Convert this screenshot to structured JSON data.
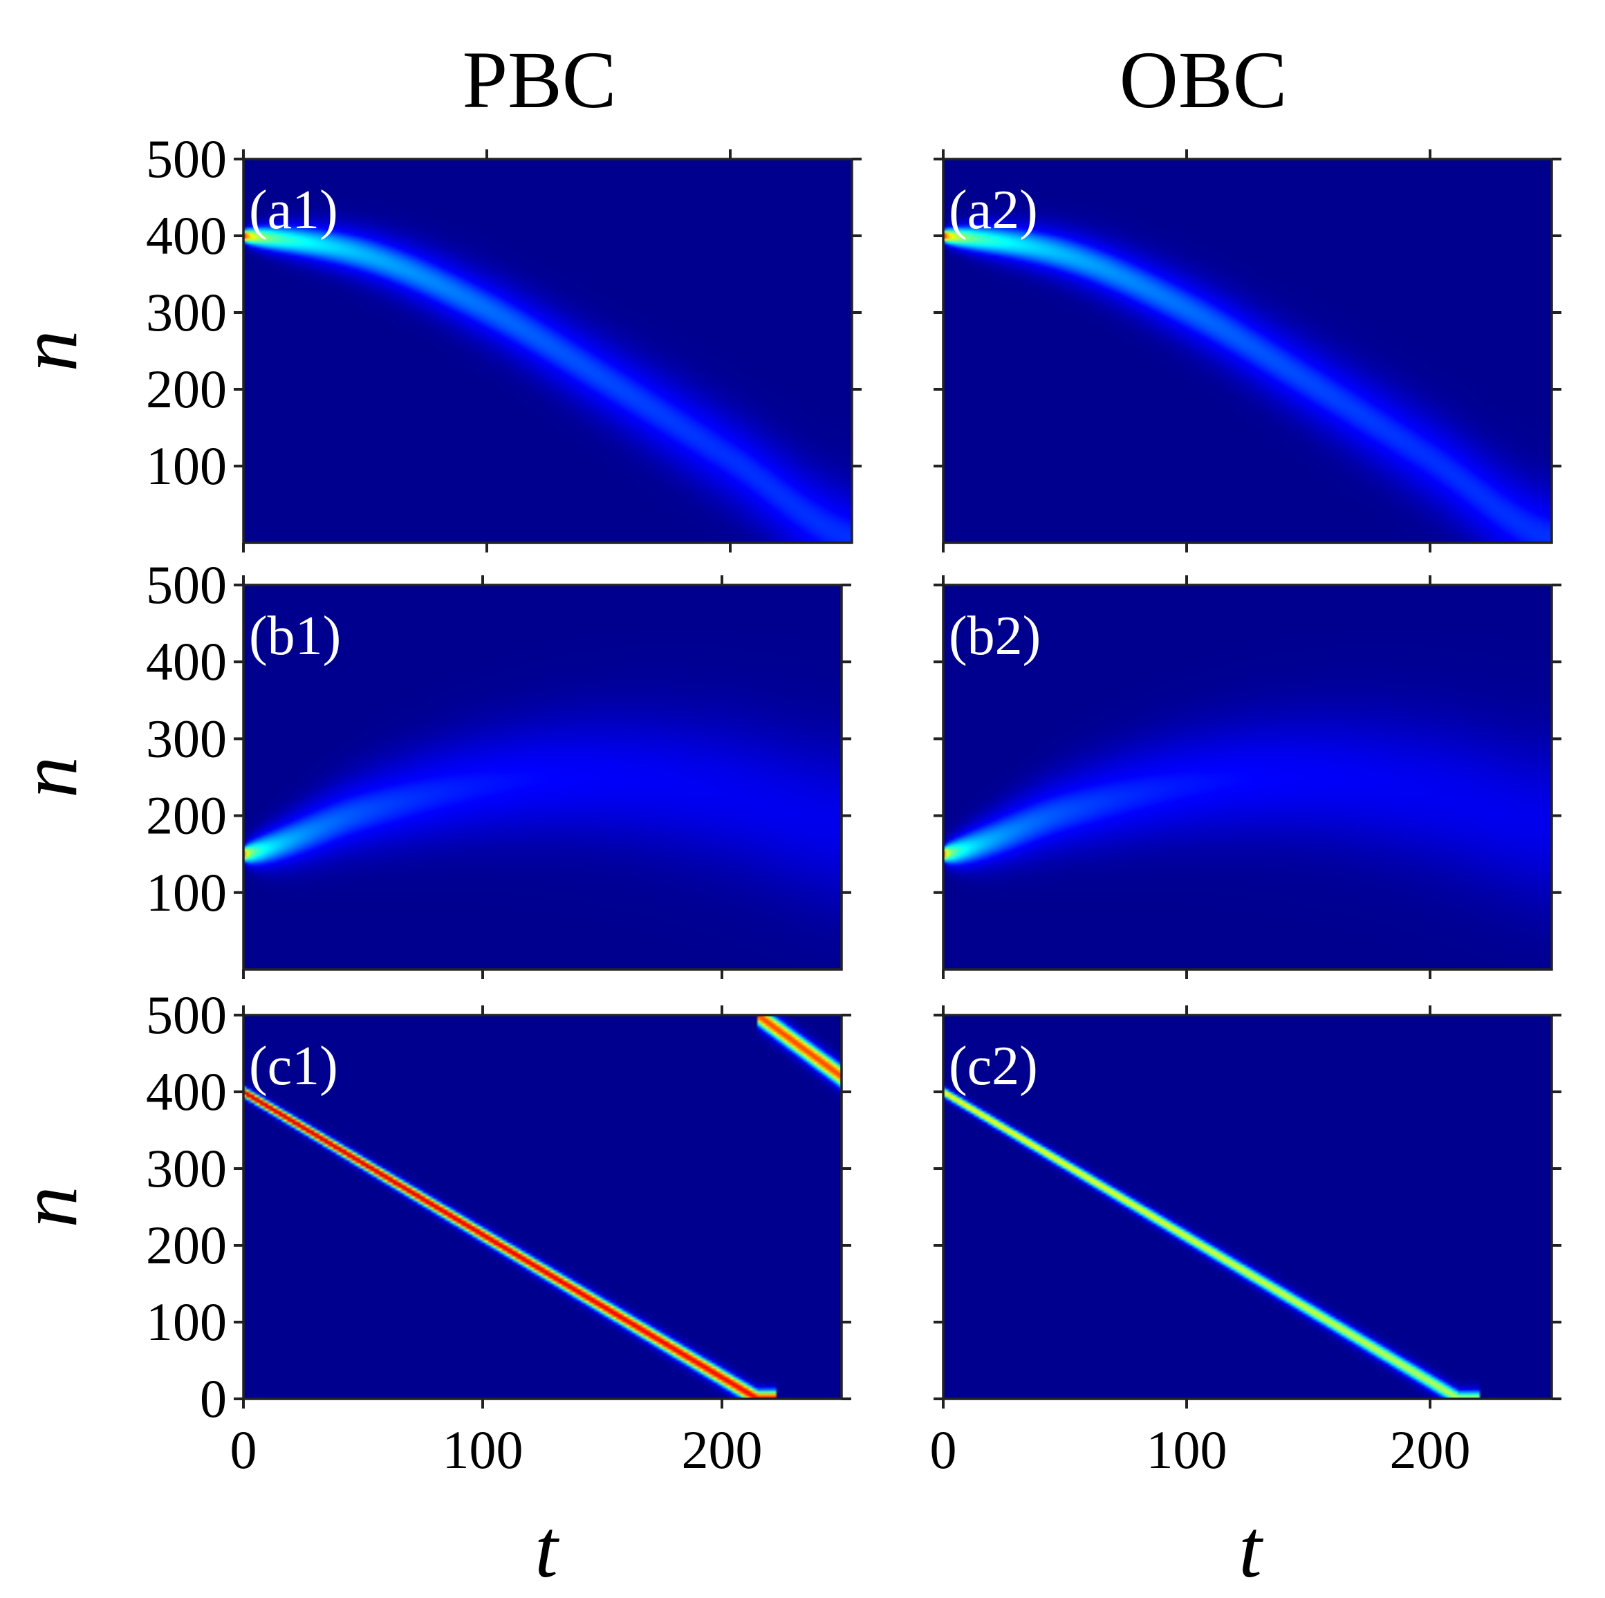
{
  "figure": {
    "column_titles": [
      "PBC",
      "OBC"
    ],
    "xlabel": "t",
    "ylabel": "n",
    "colormap": [
      "#00008f",
      "#0000ff",
      "#00ffff",
      "#ffff00",
      "#ff0000",
      "#800000"
    ]
  },
  "chart_data": [
    {
      "id": "a1",
      "type": "heatmap",
      "label": "(a1)",
      "boundary": "PBC",
      "xlim": [
        0,
        250
      ],
      "ylim": [
        0,
        500
      ],
      "xticks": [
        0,
        100,
        200
      ],
      "yticks": [
        100,
        200,
        300,
        400,
        500
      ],
      "ytick_labels": [
        "100",
        "200",
        "300",
        "400",
        "500"
      ],
      "xtick_labels": [],
      "trajectory": {
        "t": [
          0,
          50,
          100,
          150,
          200,
          250
        ],
        "n": [
          400,
          375,
          305,
          210,
          110,
          5
        ]
      },
      "peak_intensity_start": 1.0,
      "peak_intensity_end": 0.3
    },
    {
      "id": "a2",
      "type": "heatmap",
      "label": "(a2)",
      "boundary": "OBC",
      "xlim": [
        0,
        250
      ],
      "ylim": [
        0,
        500
      ],
      "xticks": [
        0,
        100,
        200
      ],
      "yticks": [
        100,
        200,
        300,
        400,
        500
      ],
      "ytick_labels": [],
      "xtick_labels": [],
      "trajectory": {
        "t": [
          0,
          50,
          100,
          150,
          200,
          250
        ],
        "n": [
          400,
          375,
          305,
          210,
          110,
          5
        ]
      },
      "peak_intensity_start": 1.0,
      "peak_intensity_end": 0.3
    },
    {
      "id": "b1",
      "type": "heatmap",
      "label": "(b1)",
      "boundary": "PBC",
      "xlim": [
        0,
        250
      ],
      "ylim": [
        0,
        500
      ],
      "xticks": [
        0,
        100,
        200
      ],
      "yticks": [
        100,
        200,
        300,
        400,
        500
      ],
      "ytick_labels": [
        "100",
        "200",
        "300",
        "400",
        "500"
      ],
      "xtick_labels": [],
      "trajectory": {
        "t": [
          0,
          50,
          100,
          150,
          200,
          250
        ],
        "n": [
          150,
          205,
          240,
          250,
          230,
          190
        ]
      },
      "peak_intensity_start": 1.0,
      "peak_intensity_end": 0.15
    },
    {
      "id": "b2",
      "type": "heatmap",
      "label": "(b2)",
      "boundary": "OBC",
      "xlim": [
        0,
        250
      ],
      "ylim": [
        0,
        500
      ],
      "xticks": [
        0,
        100,
        200
      ],
      "yticks": [
        100,
        200,
        300,
        400,
        500
      ],
      "ytick_labels": [],
      "xtick_labels": [],
      "trajectory": {
        "t": [
          0,
          50,
          100,
          150,
          200,
          250
        ],
        "n": [
          150,
          205,
          240,
          250,
          230,
          190
        ]
      },
      "peak_intensity_start": 1.0,
      "peak_intensity_end": 0.15
    },
    {
      "id": "c1",
      "type": "heatmap",
      "label": "(c1)",
      "boundary": "PBC",
      "xlim": [
        0,
        250
      ],
      "ylim": [
        0,
        500
      ],
      "xticks": [
        0,
        100,
        200
      ],
      "yticks": [
        0,
        100,
        200,
        300,
        400,
        500
      ],
      "ytick_labels": [
        "0",
        "100",
        "200",
        "300",
        "400",
        "500"
      ],
      "xtick_labels": [
        "0",
        "100",
        "200"
      ],
      "trajectory": {
        "t": [
          0,
          215
        ],
        "n": [
          400,
          0
        ]
      },
      "wrapped_trajectory": {
        "t": [
          215,
          250
        ],
        "n": [
          500,
          420
        ]
      },
      "peak_intensity_start": 1.0,
      "peak_intensity_end": 0.9
    },
    {
      "id": "c2",
      "type": "heatmap",
      "label": "(c2)",
      "boundary": "OBC",
      "xlim": [
        0,
        250
      ],
      "ylim": [
        0,
        500
      ],
      "xticks": [
        0,
        100,
        200
      ],
      "yticks": [
        0,
        100,
        200,
        300,
        400,
        500
      ],
      "ytick_labels": [],
      "xtick_labels": [
        "0",
        "100",
        "200"
      ],
      "trajectory": {
        "t": [
          0,
          212
        ],
        "n": [
          400,
          0
        ]
      },
      "peak_intensity_start": 0.7,
      "peak_intensity_end": 0.6
    }
  ]
}
